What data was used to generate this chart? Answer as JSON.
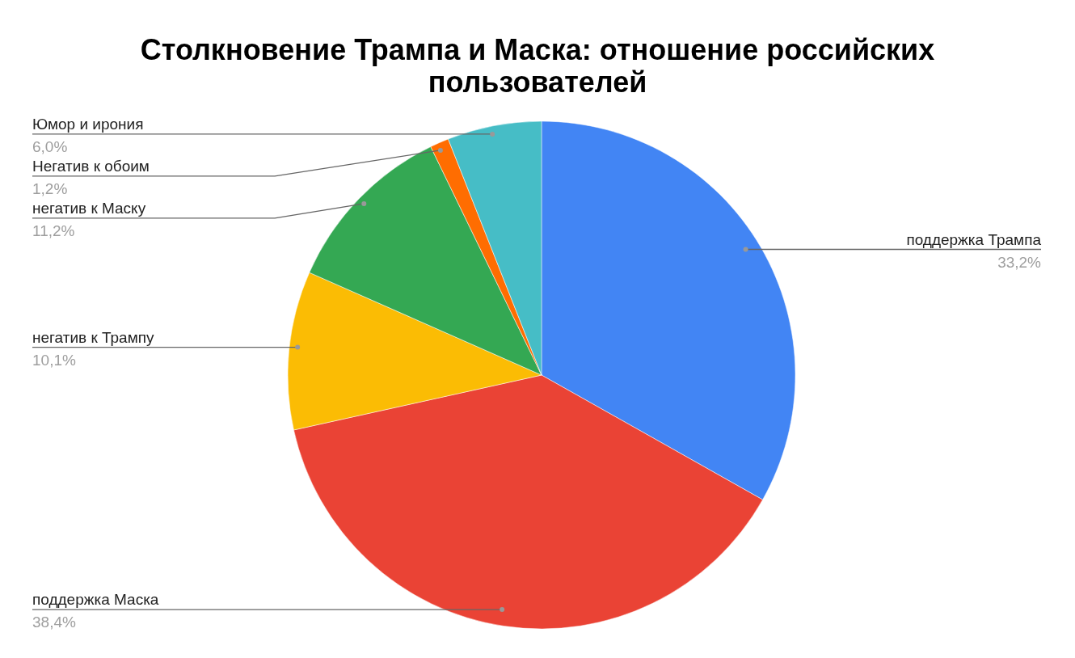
{
  "chart_data": {
    "type": "pie",
    "title": "Столкновение Трампа и Маска: отношение российских пользователей",
    "categories": [
      "поддержка Трампа",
      "поддержка Маска",
      "негатив к Трампу",
      "негатив к Маску",
      "Негатив к обоим",
      "Юмор и ирония"
    ],
    "values": [
      33.2,
      38.4,
      10.1,
      11.2,
      1.2,
      6.0
    ],
    "value_labels": [
      "33,2%",
      "38,4%",
      "10,1%",
      "11,2%",
      "1,2%",
      "6,0%"
    ],
    "colors": [
      "#4285f4",
      "#ea4335",
      "#fbbc04",
      "#34a853",
      "#ff6d01",
      "#46bdc6"
    ]
  }
}
